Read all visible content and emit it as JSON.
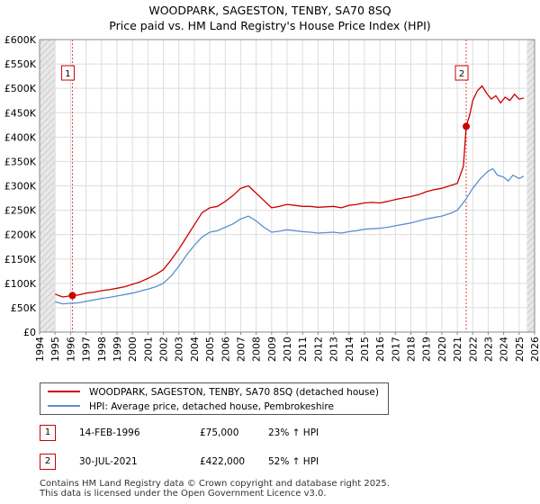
{
  "chart_data": {
    "type": "line",
    "title": "WOODPARK, SAGESTON, TENBY, SA70 8SQ",
    "subtitle": "Price paid vs. HM Land Registry's House Price Index (HPI)",
    "xlim": [
      1994,
      2026
    ],
    "ylim": [
      0,
      600000
    ],
    "x_ticks": [
      "1994",
      "1995",
      "1996",
      "1997",
      "1998",
      "1999",
      "2000",
      "2001",
      "2002",
      "2003",
      "2004",
      "2005",
      "2006",
      "2007",
      "2008",
      "2009",
      "2010",
      "2011",
      "2012",
      "2013",
      "2014",
      "2015",
      "2016",
      "2017",
      "2018",
      "2019",
      "2020",
      "2021",
      "2022",
      "2023",
      "2024",
      "2025",
      "2026"
    ],
    "y_ticks": [
      {
        "value": 0,
        "label": "£0"
      },
      {
        "value": 50000,
        "label": "£50K"
      },
      {
        "value": 100000,
        "label": "£100K"
      },
      {
        "value": 150000,
        "label": "£150K"
      },
      {
        "value": 200000,
        "label": "£200K"
      },
      {
        "value": 250000,
        "label": "£250K"
      },
      {
        "value": 300000,
        "label": "£300K"
      },
      {
        "value": 350000,
        "label": "£350K"
      },
      {
        "value": 400000,
        "label": "£400K"
      },
      {
        "value": 450000,
        "label": "£450K"
      },
      {
        "value": 500000,
        "label": "£500K"
      },
      {
        "value": 550000,
        "label": "£550K"
      },
      {
        "value": 600000,
        "label": "£600K"
      }
    ],
    "data_range": [
      1995.0,
      2025.5
    ],
    "grid": true,
    "series": [
      {
        "name": "WOODPARK, SAGESTON, TENBY, SA70 8SQ (detached house)",
        "color": "#cc0000",
        "x": [
          1995.0,
          1995.5,
          1996.12,
          1996.5,
          1997.0,
          1997.5,
          1998.0,
          1998.5,
          1999.0,
          1999.5,
          2000.0,
          2000.5,
          2001.0,
          2001.5,
          2002.0,
          2002.5,
          2003.0,
          2003.5,
          2004.0,
          2004.5,
          2005.0,
          2005.5,
          2006.0,
          2006.5,
          2007.0,
          2007.5,
          2008.0,
          2008.5,
          2009.0,
          2009.5,
          2010.0,
          2010.5,
          2011.0,
          2011.5,
          2012.0,
          2012.5,
          2013.0,
          2013.5,
          2014.0,
          2014.5,
          2015.0,
          2015.5,
          2016.0,
          2016.5,
          2017.0,
          2017.5,
          2018.0,
          2018.5,
          2019.0,
          2019.5,
          2020.0,
          2020.5,
          2021.0,
          2021.4,
          2021.58,
          2021.8,
          2022.0,
          2022.3,
          2022.6,
          2022.9,
          2023.2,
          2023.5,
          2023.8,
          2024.1,
          2024.4,
          2024.7,
          2025.0,
          2025.3
        ],
        "values": [
          78000,
          72000,
          75000,
          76000,
          80000,
          82000,
          85000,
          87000,
          90000,
          93000,
          98000,
          103000,
          110000,
          118000,
          128000,
          148000,
          170000,
          195000,
          220000,
          245000,
          255000,
          258000,
          268000,
          280000,
          295000,
          300000,
          285000,
          270000,
          255000,
          258000,
          262000,
          260000,
          258000,
          258000,
          256000,
          257000,
          258000,
          255000,
          260000,
          262000,
          265000,
          266000,
          265000,
          268000,
          272000,
          275000,
          278000,
          282000,
          288000,
          292000,
          295000,
          300000,
          305000,
          340000,
          422000,
          445000,
          475000,
          495000,
          505000,
          490000,
          478000,
          485000,
          470000,
          482000,
          475000,
          488000,
          478000,
          480000
        ]
      },
      {
        "name": "HPI: Average price, detached house, Pembrokeshire",
        "color": "#5b8fcc",
        "x": [
          1995.0,
          1995.5,
          1996.0,
          1996.5,
          1997.0,
          1997.5,
          1998.0,
          1998.5,
          1999.0,
          1999.5,
          2000.0,
          2000.5,
          2001.0,
          2001.5,
          2002.0,
          2002.5,
          2003.0,
          2003.5,
          2004.0,
          2004.5,
          2005.0,
          2005.5,
          2006.0,
          2006.5,
          2007.0,
          2007.5,
          2008.0,
          2008.5,
          2009.0,
          2009.5,
          2010.0,
          2010.5,
          2011.0,
          2011.5,
          2012.0,
          2012.5,
          2013.0,
          2013.5,
          2014.0,
          2014.5,
          2015.0,
          2015.5,
          2016.0,
          2016.5,
          2017.0,
          2017.5,
          2018.0,
          2018.5,
          2019.0,
          2019.5,
          2020.0,
          2020.5,
          2021.0,
          2021.5,
          2022.0,
          2022.5,
          2023.0,
          2023.3,
          2023.6,
          2024.0,
          2024.3,
          2024.6,
          2025.0,
          2025.3
        ],
        "values": [
          62000,
          58000,
          59000,
          60000,
          63000,
          66000,
          69000,
          71000,
          74000,
          77000,
          80000,
          84000,
          88000,
          93000,
          100000,
          115000,
          135000,
          158000,
          178000,
          195000,
          205000,
          208000,
          215000,
          222000,
          232000,
          238000,
          228000,
          215000,
          205000,
          207000,
          210000,
          208000,
          206000,
          205000,
          203000,
          204000,
          205000,
          203000,
          206000,
          208000,
          211000,
          212000,
          213000,
          215000,
          218000,
          221000,
          224000,
          228000,
          232000,
          235000,
          238000,
          243000,
          250000,
          270000,
          295000,
          315000,
          330000,
          335000,
          322000,
          318000,
          310000,
          322000,
          315000,
          320000
        ]
      }
    ],
    "sales": [
      {
        "label": "1",
        "x": 1996.12,
        "value": 75000
      },
      {
        "label": "2",
        "x": 2021.58,
        "value": 422000
      }
    ]
  },
  "legend": {
    "items": [
      {
        "label": "WOODPARK, SAGESTON, TENBY, SA70 8SQ (detached house)",
        "color": "#cc0000"
      },
      {
        "label": "HPI: Average price, detached house, Pembrokeshire",
        "color": "#5b8fcc"
      }
    ]
  },
  "sales_table": [
    {
      "num": "1",
      "date": "14-FEB-1996",
      "price": "£75,000",
      "hpi": "23% ↑ HPI"
    },
    {
      "num": "2",
      "date": "30-JUL-2021",
      "price": "£422,000",
      "hpi": "52% ↑ HPI"
    }
  ],
  "footer": {
    "line1": "Contains HM Land Registry data © Crown copyright and database right 2025.",
    "line2": "This data is licensed under the Open Government Licence v3.0."
  }
}
